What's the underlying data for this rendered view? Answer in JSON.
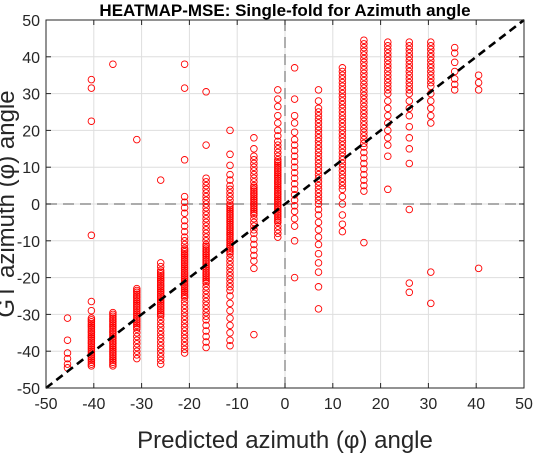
{
  "chart_data": {
    "type": "scatter",
    "title": "HEATMAP-MSE: Single-fold for Azimuth angle",
    "xlabel": "Predicted azimuth (φ) angle",
    "ylabel": "GT azimuth (φ) angle",
    "xlim": [
      -50,
      50
    ],
    "ylim": [
      -50,
      50
    ],
    "xticks": [
      "-50",
      "-40",
      "-30",
      "-20",
      "-10",
      "0",
      "10",
      "20",
      "30",
      "40",
      "50"
    ],
    "yticks": [
      "-50",
      "-40",
      "-30",
      "-20",
      "-10",
      "0",
      "10",
      "20",
      "30",
      "40",
      "50"
    ],
    "grid": true,
    "marker_color": "#ff0000",
    "marker": "open-circle",
    "reference_lines": {
      "x": 0,
      "y": 0,
      "style": "dashed",
      "color": "#7a7a7a"
    },
    "identity_line": {
      "from": [
        -50,
        -50
      ],
      "to": [
        50,
        50
      ],
      "style": "dashed",
      "color": "#000000"
    },
    "columns": [
      {
        "x": -45.5,
        "points": [
          -44.5,
          -43.5,
          -42,
          -40.5,
          -37,
          -31
        ]
      },
      {
        "x": -40.5,
        "points": [
          -44,
          -43.5,
          -43,
          -42.5,
          -42,
          -41.5,
          -41,
          -40.5,
          -40,
          -39.5,
          -39,
          -38.5,
          -38,
          -37.5,
          -37,
          -36.5,
          -36,
          -35.5,
          -35,
          -34.5,
          -34,
          -33.5,
          -33,
          -32.5,
          -32,
          -31.5,
          -31,
          -29,
          -26.5,
          -8.5,
          22.5,
          31.5,
          33.8
        ]
      },
      {
        "x": -36,
        "points": [
          -44,
          -43.5,
          -43,
          -42.5,
          -42,
          -41.5,
          -41,
          -40.5,
          -40,
          -39.5,
          -39,
          -38.5,
          -38,
          -37.5,
          -37,
          -36.5,
          -36,
          -35.5,
          -35,
          -34.5,
          -34,
          -33.5,
          -33,
          -32.5,
          -32,
          -31.5,
          -31,
          -30.5,
          -30,
          -29.5,
          38
        ]
      },
      {
        "x": -31,
        "points": [
          -42,
          -41,
          -40,
          -39,
          -38,
          -37,
          -36,
          -35,
          -34,
          -33.5,
          -33,
          -32.5,
          -32,
          -31.5,
          -31,
          -30.5,
          -30,
          -29.5,
          -29,
          -28.5,
          -28,
          -27.5,
          -27,
          -26.5,
          -26,
          -25.5,
          -25,
          -24.5,
          -24,
          -23.5,
          -23,
          17.5
        ]
      },
      {
        "x": -26,
        "points": [
          -43.5,
          -42.5,
          -41.5,
          -40.5,
          -39.5,
          -38.5,
          -37.5,
          -36.5,
          -35.5,
          -34.5,
          -33.5,
          -32.5,
          -31.5,
          -30.5,
          -30,
          -29.5,
          -29,
          -28.5,
          -28,
          -27.5,
          -27,
          -26.5,
          -26,
          -25.5,
          -25,
          -24.5,
          -24,
          -23.5,
          -23,
          -22.5,
          -22,
          -21.5,
          -21,
          -20.5,
          -20,
          -19.5,
          -19,
          -18.5,
          -18,
          -17,
          -16,
          6.5
        ]
      },
      {
        "x": -21,
        "points": [
          -40.5,
          -39.5,
          -38.5,
          -37.5,
          -36.5,
          -35.5,
          -34.5,
          -33.5,
          -32.5,
          -31.5,
          -30.5,
          -29.5,
          -28.5,
          -27.5,
          -26.5,
          -25.5,
          -25,
          -24.5,
          -24,
          -23.5,
          -23,
          -22.5,
          -22,
          -21.5,
          -21,
          -20.5,
          -20,
          -19.5,
          -19,
          -18.5,
          -18,
          -17.5,
          -17,
          -16.5,
          -16,
          -15.5,
          -15,
          -14.5,
          -14,
          -13.5,
          -13,
          -12.5,
          -12,
          -11,
          -10,
          -9,
          -7.5,
          -6,
          -4.5,
          -2.5,
          -1,
          0.5,
          2,
          12,
          31.5,
          38
        ]
      },
      {
        "x": -16.5,
        "points": [
          -39,
          -37.5,
          -36,
          -34.5,
          -33,
          -31.5,
          -30.5,
          -29.5,
          -28.5,
          -27.5,
          -26.5,
          -25.5,
          -24.5,
          -23.5,
          -22.5,
          -21.5,
          -21,
          -20.5,
          -20,
          -19.5,
          -19,
          -18.5,
          -18,
          -17.5,
          -17,
          -16.5,
          -16,
          -15.5,
          -15,
          -14.5,
          -14,
          -13.5,
          -13,
          -12.5,
          -12,
          -11.5,
          -11,
          -10,
          -9,
          -8,
          -7,
          -6,
          -5,
          -4,
          -3,
          -2,
          -1,
          0,
          1,
          2,
          3,
          4,
          5,
          6,
          7,
          16,
          30.5
        ]
      },
      {
        "x": -11.5,
        "points": [
          -38.5,
          -37,
          -35,
          -33,
          -31,
          -29,
          -27,
          -25,
          -23.5,
          -22.5,
          -21.5,
          -20.5,
          -19.5,
          -18.5,
          -17.5,
          -16.5,
          -15.5,
          -14.5,
          -13.5,
          -13,
          -12.5,
          -12,
          -11.5,
          -11,
          -10.5,
          -10,
          -9.5,
          -9,
          -8.5,
          -8,
          -7.5,
          -7,
          -6.5,
          -6,
          -5.5,
          -5,
          -4.5,
          -4,
          -3.5,
          -3,
          -2.5,
          -2,
          -1.5,
          -1,
          -0.5,
          0,
          1,
          2,
          3,
          4,
          5,
          6.5,
          8,
          10.5,
          13.5,
          20
        ]
      },
      {
        "x": -6.5,
        "points": [
          -35.5,
          -17.5,
          -15.5,
          -14,
          -12.5,
          -11,
          -9.5,
          -8,
          -7,
          -6,
          -5,
          -4,
          -3,
          -2.5,
          -2,
          -1.5,
          -1,
          -0.5,
          0,
          0.5,
          1,
          1.5,
          2,
          2.5,
          3,
          3.5,
          4,
          4.5,
          5,
          6,
          7,
          8,
          9,
          10,
          11,
          12,
          13,
          15,
          18
        ]
      },
      {
        "x": -1.5,
        "points": [
          -9,
          -8,
          -7,
          -6,
          -5,
          -4.5,
          -4,
          -3.5,
          -3,
          -2.5,
          -2,
          -1.5,
          -1,
          -0.5,
          0,
          0.5,
          1,
          1.5,
          2,
          2.5,
          3,
          3.5,
          4,
          4.5,
          5,
          5.5,
          6,
          6.5,
          7,
          7.5,
          8,
          8.5,
          9,
          9.5,
          10,
          10.5,
          11,
          11.5,
          12,
          13,
          14,
          15,
          16,
          17,
          18.5,
          20,
          22,
          24,
          26.5,
          28.5,
          31
        ]
      },
      {
        "x": 2,
        "points": [
          -20,
          -10,
          -6,
          -4,
          -2,
          -0.5,
          1,
          2.5,
          4,
          5.5,
          7,
          8.5,
          10,
          11.5,
          13,
          14.5,
          16,
          17.5,
          19.5,
          22,
          24,
          28.5,
          37
        ]
      },
      {
        "x": 7,
        "points": [
          -28.5,
          -22.5,
          -18.5,
          -16,
          -13.5,
          -11,
          -9,
          -7,
          -5,
          -3,
          -1.5,
          0,
          1,
          2,
          3,
          4,
          5,
          6,
          7,
          8,
          9,
          10,
          11,
          12,
          13,
          14,
          15,
          16,
          17,
          18,
          19,
          20,
          21,
          22,
          23,
          24,
          25,
          26,
          28,
          31
        ]
      },
      {
        "x": 12,
        "points": [
          -7.5,
          -5.5,
          -3,
          0,
          2,
          4,
          5,
          6,
          7,
          8,
          9,
          10,
          11,
          12,
          13,
          14,
          15,
          16,
          17,
          18,
          19,
          20,
          21,
          22,
          23,
          24,
          25,
          26,
          27,
          28,
          29,
          30,
          31,
          32,
          33,
          34,
          35,
          36,
          37
        ]
      },
      {
        "x": 16.5,
        "points": [
          -10.5,
          3.5,
          5,
          6.5,
          8,
          9.5,
          11,
          12.5,
          14,
          15.5,
          16.5,
          17.5,
          18.5,
          19.5,
          20.5,
          21.5,
          22.5,
          23.5,
          24.5,
          25.5,
          26.5,
          27.5,
          28.5,
          29.5,
          30.5,
          31.5,
          32.5,
          33.5,
          34.5,
          35.5,
          36.5,
          37.5,
          38.5,
          39.5,
          40.5,
          41.5,
          42.5,
          43.5,
          44.5
        ]
      },
      {
        "x": 21.5,
        "points": [
          4,
          13,
          16,
          18,
          20,
          22,
          24,
          26,
          28,
          30,
          31,
          32,
          33,
          34,
          35,
          36,
          37,
          38,
          39,
          40,
          41,
          42,
          43,
          44
        ]
      },
      {
        "x": 26,
        "points": [
          -24,
          -21.5,
          -1.5,
          11,
          15,
          18,
          21,
          24,
          26,
          28,
          30,
          31,
          32,
          33,
          34,
          35,
          36,
          37,
          38,
          39,
          40,
          41,
          42,
          43,
          44
        ]
      },
      {
        "x": 30.5,
        "points": [
          -27,
          -18.5,
          22,
          24,
          26,
          28,
          30,
          32,
          33,
          34,
          35,
          36,
          37,
          38,
          39,
          40,
          41,
          42,
          43,
          44
        ]
      },
      {
        "x": 35.5,
        "points": [
          31,
          32.5,
          34,
          36,
          38.5,
          41,
          42.5
        ]
      },
      {
        "x": 40.5,
        "points": [
          -17.5,
          31,
          33,
          35
        ]
      }
    ]
  }
}
